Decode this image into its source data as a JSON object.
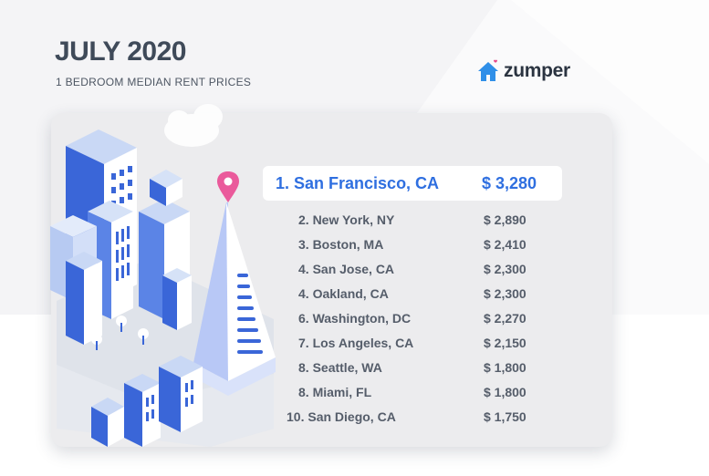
{
  "header": {
    "title": "JULY 2020",
    "subtitle": "1 BEDROOM MEDIAN RENT PRICES"
  },
  "logo": {
    "text": "zumper",
    "icon": "house-heart-icon",
    "icon_color": "#2f8fe8",
    "heart_color": "#e84a8a"
  },
  "colors": {
    "accent": "#2f6fe0",
    "text": "#555d6a",
    "pin": "#ea5a9b"
  },
  "rankings": [
    {
      "rank_city": "1. San Francisco, CA",
      "price": "$  3,280"
    },
    {
      "rank_city": "2. New York, NY",
      "price": "$ 2,890"
    },
    {
      "rank_city": "3. Boston, MA",
      "price": "$ 2,410"
    },
    {
      "rank_city": "4. San Jose, CA",
      "price": "$ 2,300"
    },
    {
      "rank_city": "4. Oakland, CA",
      "price": "$ 2,300"
    },
    {
      "rank_city": "6. Washington, DC",
      "price": "$ 2,270"
    },
    {
      "rank_city": "7. Los Angeles, CA",
      "price": "$ 2,150"
    },
    {
      "rank_city": "8. Seattle, WA",
      "price": "$ 1,800"
    },
    {
      "rank_city": "8. Miami, FL",
      "price": "$ 1,800"
    },
    {
      "rank_city": "10. San Diego, CA",
      "price": "$ 1,750"
    }
  ]
}
